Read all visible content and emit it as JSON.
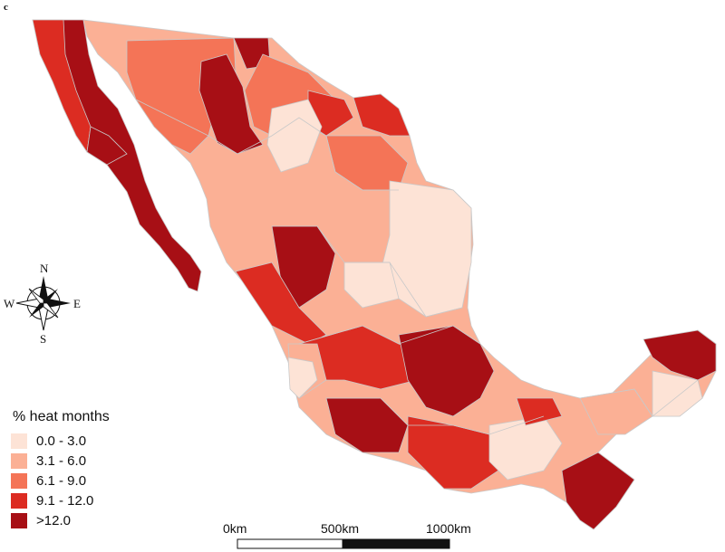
{
  "panel_label": "c",
  "legend": {
    "title": "% heat months",
    "items": [
      {
        "label": "0.0 - 3.0",
        "color": "#fde3d6"
      },
      {
        "label": "3.1 - 6.0",
        "color": "#fbb095"
      },
      {
        "label": "6.1 - 9.0",
        "color": "#f47457"
      },
      {
        "label": "9.1 - 12.0",
        "color": "#dc2c22"
      },
      {
        "label": ">12.0",
        "color": "#a70f15"
      }
    ]
  },
  "compass": {
    "n": "N",
    "e": "E",
    "s": "S",
    "w": "W"
  },
  "scale_bar": {
    "labels": [
      "0km",
      "500km",
      "1000km"
    ]
  },
  "border_color": "#c9c9c9"
}
